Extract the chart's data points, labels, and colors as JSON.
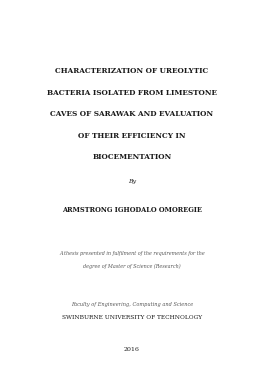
{
  "background_color": "#ffffff",
  "title_lines": [
    "CHARACTERIZATION OF UREOLYTIC",
    "BACTERIA ISOLATED FROM LIMESTONE",
    "CAVES OF SARAWAK AND EVALUATION",
    "OF THEIR EFFICIENCY IN",
    "BIOCEMENTATION"
  ],
  "by_text": "By",
  "author": "ARMSTRONG IGHODALO OMOREGIE",
  "thesis_line1": "A thesis presented in fulfilment of the requirements for the",
  "thesis_line2": "degree of Master of Science (Research)",
  "faculty": "Faculty of Engineering, Computing and Science",
  "university": "SWINBURNE UNIVERSITY OF TECHNOLOGY",
  "year": "2016",
  "title_fontsize": 5.2,
  "author_fontsize": 4.8,
  "by_fontsize": 4.5,
  "thesis_fontsize": 3.5,
  "faculty_fontsize": 3.6,
  "university_fontsize": 4.2,
  "year_fontsize": 4.5,
  "text_color": "#1a1a1a",
  "italic_color": "#555555"
}
